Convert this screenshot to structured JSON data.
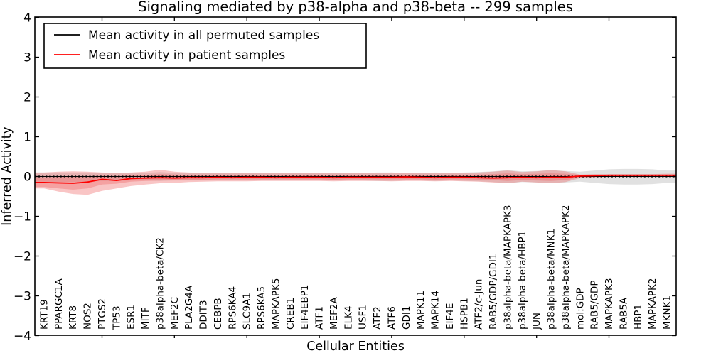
{
  "chart_data": {
    "type": "line",
    "title": "Signaling mediated by p38-alpha and p38-beta -- 299 samples",
    "xlabel": "Cellular Entities",
    "ylabel": "Inferred Activity",
    "ylim": [
      -4,
      4
    ],
    "yticks": [
      4,
      3,
      2,
      1,
      0,
      -1,
      -2,
      -3,
      -4
    ],
    "xtick_interval": 5,
    "grid": false,
    "legend_position": "upper left",
    "categories": [
      "KRT19",
      "PPARGC1A",
      "KRT8",
      "NOS2",
      "PTGS2",
      "TP53",
      "ESR1",
      "MITF",
      "p38alpha-beta/CK2",
      "MEF2C",
      "PLA2G4A",
      "DDIT3",
      "CEBPB",
      "RPS6KA4",
      "SLC9A1",
      "RPS6KA5",
      "MAPKAPK5",
      "CREB1",
      "EIF4EBP1",
      "ATF1",
      "MEF2A",
      "ELK4",
      "USF1",
      "ATF2",
      "ATF6",
      "GDI1",
      "MAPK11",
      "MAPK14",
      "EIF4E",
      "HSPB1",
      "ATF2/c-Jun",
      "RAB5/GDP/GDI1",
      "p38alpha-beta/MAPKAPK3",
      "p38alpha-beta/HBP1",
      "JUN",
      "p38alpha-beta/MNK1",
      "p38alpha-beta/MAPKAPK2",
      "mol:GDP",
      "RAB5/GDP",
      "MAPKAPK3",
      "RAB5A",
      "HBP1",
      "MAPKAPK2",
      "MKNK1"
    ],
    "series": [
      {
        "name": "Mean activity in all permuted samples",
        "color": "#000000",
        "style": "dotted",
        "values": [
          0,
          0,
          0,
          0,
          0,
          0,
          0,
          0,
          0,
          0,
          0,
          0,
          0,
          0,
          0,
          0,
          0,
          0,
          0,
          0,
          0,
          0,
          0,
          0,
          0,
          0,
          0,
          0,
          0,
          0,
          0,
          0,
          0,
          0,
          0,
          0,
          0,
          0,
          0,
          0,
          0,
          0,
          0,
          0
        ]
      },
      {
        "name": "Mean activity in patient samples",
        "color": "#ff0000",
        "style": "solid",
        "values": [
          -0.15,
          -0.16,
          -0.17,
          -0.14,
          -0.07,
          -0.1,
          -0.05,
          -0.04,
          -0.03,
          -0.04,
          -0.03,
          -0.03,
          -0.02,
          -0.03,
          -0.02,
          -0.02,
          -0.03,
          -0.02,
          -0.02,
          -0.02,
          -0.03,
          -0.02,
          -0.02,
          -0.02,
          -0.02,
          -0.01,
          -0.02,
          -0.03,
          -0.02,
          -0.02,
          -0.03,
          -0.04,
          -0.03,
          -0.02,
          -0.03,
          -0.02,
          -0.02,
          0.01,
          0.02,
          0.03,
          0.03,
          0.03,
          0.03,
          0.03
        ]
      }
    ],
    "bands": [
      {
        "name": "permuted-samples-range",
        "color": "#aaaaaa",
        "opacity": 0.35,
        "upper": [
          0.1,
          0.1,
          0.1,
          0.1,
          0.09,
          0.09,
          0.09,
          0.09,
          0.11,
          0.09,
          0.09,
          0.09,
          0.09,
          0.09,
          0.09,
          0.09,
          0.09,
          0.09,
          0.09,
          0.09,
          0.09,
          0.09,
          0.09,
          0.1,
          0.1,
          0.09,
          0.09,
          0.1,
          0.09,
          0.1,
          0.11,
          0.13,
          0.16,
          0.13,
          0.14,
          0.16,
          0.14,
          0.12,
          0.15,
          0.18,
          0.19,
          0.19,
          0.18,
          0.15
        ],
        "lower": [
          -0.13,
          -0.14,
          -0.14,
          -0.13,
          -0.11,
          -0.11,
          -0.1,
          -0.1,
          -0.11,
          -0.1,
          -0.1,
          -0.1,
          -0.1,
          -0.1,
          -0.1,
          -0.1,
          -0.1,
          -0.1,
          -0.1,
          -0.1,
          -0.1,
          -0.1,
          -0.1,
          -0.11,
          -0.11,
          -0.1,
          -0.1,
          -0.11,
          -0.1,
          -0.11,
          -0.12,
          -0.14,
          -0.17,
          -0.14,
          -0.15,
          -0.17,
          -0.15,
          -0.13,
          -0.16,
          -0.19,
          -0.2,
          -0.2,
          -0.19,
          -0.16
        ]
      },
      {
        "name": "patient-samples-range-outer",
        "color": "#ee6666",
        "opacity": 0.38,
        "upper": [
          0.1,
          0.12,
          0.13,
          0.12,
          0.1,
          0.09,
          0.1,
          0.12,
          0.17,
          0.12,
          0.1,
          0.09,
          0.08,
          0.08,
          0.09,
          0.08,
          0.08,
          0.08,
          0.08,
          0.08,
          0.09,
          0.08,
          0.08,
          0.09,
          0.1,
          0.09,
          0.08,
          0.09,
          0.08,
          0.09,
          0.1,
          0.12,
          0.15,
          0.11,
          0.13,
          0.16,
          0.13,
          0.05,
          0.06,
          0.06,
          0.06,
          0.06,
          0.06,
          0.07
        ],
        "lower": [
          -0.3,
          -0.38,
          -0.44,
          -0.46,
          -0.36,
          -0.3,
          -0.24,
          -0.2,
          -0.17,
          -0.16,
          -0.14,
          -0.13,
          -0.12,
          -0.12,
          -0.12,
          -0.11,
          -0.11,
          -0.11,
          -0.11,
          -0.11,
          -0.12,
          -0.11,
          -0.11,
          -0.11,
          -0.12,
          -0.11,
          -0.11,
          -0.12,
          -0.11,
          -0.12,
          -0.13,
          -0.15,
          -0.17,
          -0.13,
          -0.15,
          -0.17,
          -0.14,
          -0.04,
          -0.02,
          -0.01,
          -0.01,
          -0.01,
          -0.01,
          -0.01
        ]
      },
      {
        "name": "patient-samples-range-inner",
        "color": "#ee6666",
        "opacity": 0.38,
        "upper": [
          -0.02,
          -0.01,
          0.0,
          0.0,
          0.02,
          0.01,
          0.03,
          0.04,
          0.06,
          0.05,
          0.04,
          0.04,
          0.04,
          0.04,
          0.04,
          0.04,
          0.04,
          0.04,
          0.04,
          0.04,
          0.04,
          0.04,
          0.04,
          0.04,
          0.04,
          0.04,
          0.04,
          0.04,
          0.04,
          0.04,
          0.05,
          0.06,
          0.08,
          0.06,
          0.07,
          0.08,
          0.07,
          0.04,
          0.05,
          0.05,
          0.05,
          0.05,
          0.05,
          0.05
        ],
        "lower": [
          -0.26,
          -0.3,
          -0.33,
          -0.3,
          -0.2,
          -0.18,
          -0.13,
          -0.11,
          -0.1,
          -0.09,
          -0.08,
          -0.08,
          -0.07,
          -0.07,
          -0.07,
          -0.07,
          -0.07,
          -0.07,
          -0.07,
          -0.07,
          -0.08,
          -0.07,
          -0.07,
          -0.07,
          -0.07,
          -0.07,
          -0.07,
          -0.08,
          -0.07,
          -0.07,
          -0.08,
          -0.09,
          -0.11,
          -0.09,
          -0.1,
          -0.11,
          -0.09,
          -0.02,
          0.0,
          0.0,
          0.0,
          0.0,
          0.0,
          0.0
        ]
      }
    ]
  },
  "legend": {
    "entries": [
      {
        "label": "Mean activity in all permuted samples"
      },
      {
        "label": "Mean activity in patient samples"
      }
    ]
  }
}
